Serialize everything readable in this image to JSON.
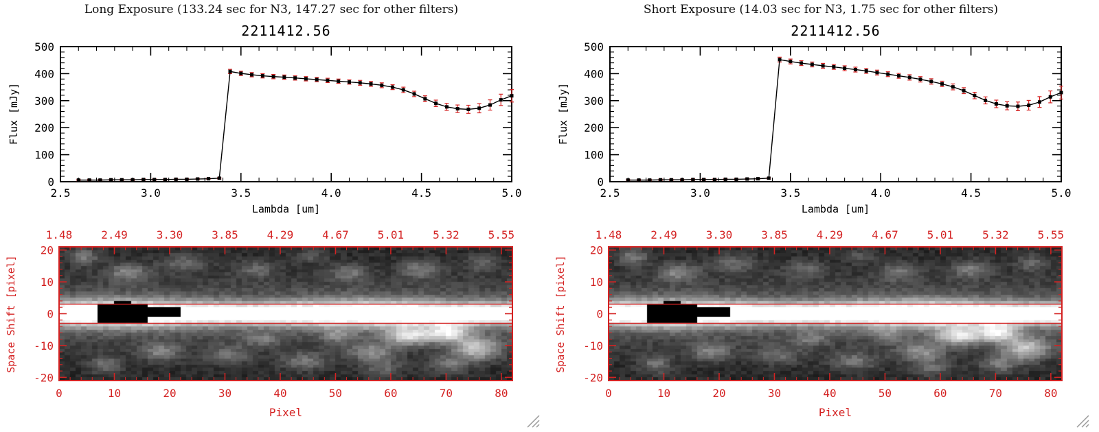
{
  "colors": {
    "red": "#d42222",
    "black": "#000000",
    "background": "#ffffff"
  },
  "chart_data": [
    {
      "panel": "long-exposure",
      "panel_title": "Long Exposure (133.24 sec for N3, 147.27 sec for other filters)",
      "object_id": "2211412.56",
      "spectrum": {
        "type": "line",
        "title": "2211412.56",
        "xlabel": "Lambda [um]",
        "ylabel": "Flux [mJy]",
        "xlim": [
          2.5,
          5.0
        ],
        "ylim": [
          0,
          500
        ],
        "xticks": [
          "2.5",
          "3.0",
          "3.5",
          "4.0",
          "4.5",
          "5.0"
        ],
        "yticks": [
          "0",
          "100",
          "200",
          "300",
          "400",
          "500"
        ],
        "marker": "square",
        "line_color": "#000000",
        "error_color": "#d42222",
        "x": [
          2.6,
          2.66,
          2.72,
          2.78,
          2.84,
          2.9,
          2.96,
          3.02,
          3.08,
          3.14,
          3.2,
          3.26,
          3.32,
          3.38,
          3.44,
          3.5,
          3.56,
          3.62,
          3.68,
          3.74,
          3.8,
          3.86,
          3.92,
          3.98,
          4.04,
          4.1,
          4.16,
          4.22,
          4.28,
          4.34,
          4.4,
          4.46,
          4.52,
          4.58,
          4.64,
          4.7,
          4.76,
          4.82,
          4.88,
          4.94,
          5.0
        ],
        "y": [
          6,
          6,
          6,
          7,
          7,
          7,
          8,
          8,
          8,
          9,
          9,
          10,
          11,
          13,
          408,
          401,
          396,
          392,
          389,
          387,
          384,
          381,
          378,
          375,
          372,
          369,
          366,
          362,
          357,
          350,
          340,
          325,
          307,
          290,
          277,
          270,
          268,
          272,
          284,
          303,
          318
        ],
        "yerr": [
          3,
          3,
          3,
          3,
          3,
          3,
          3,
          3,
          3,
          3,
          3,
          3,
          3,
          3,
          8,
          8,
          8,
          8,
          8,
          8,
          8,
          8,
          8,
          8,
          8,
          8,
          9,
          9,
          9,
          9,
          10,
          10,
          11,
          12,
          13,
          14,
          15,
          17,
          19,
          21,
          23
        ]
      },
      "image2d": {
        "type": "heatmap",
        "xlabel": "Pixel",
        "ylabel": "Space Shift [pixel]",
        "xlim": [
          0,
          82
        ],
        "ylim": [
          -21,
          21
        ],
        "xticks": [
          "0",
          "10",
          "20",
          "30",
          "40",
          "50",
          "60",
          "70",
          "80"
        ],
        "yticks": [
          "20",
          "10",
          "0",
          "-10",
          "-20"
        ],
        "top_axis_labels": [
          "1.48",
          "2.49",
          "3.30",
          "3.85",
          "4.29",
          "4.67",
          "5.01",
          "5.32",
          "5.55"
        ],
        "aperture_y": [
          3,
          -3
        ],
        "saturated_region": {
          "x": [
            7,
            21
          ],
          "y": [
            -2.6,
            3.6
          ]
        },
        "frame_color": "#d42222"
      }
    },
    {
      "panel": "short-exposure",
      "panel_title": "Short Exposure (14.03 sec for N3, 1.75 sec for other filters)",
      "object_id": "2211412.56",
      "spectrum": {
        "type": "line",
        "title": "2211412.56",
        "xlabel": "Lambda [um]",
        "ylabel": "Flux [mJy]",
        "xlim": [
          2.5,
          5.0
        ],
        "ylim": [
          0,
          500
        ],
        "xticks": [
          "2.5",
          "3.0",
          "3.5",
          "4.0",
          "4.5",
          "5.0"
        ],
        "yticks": [
          "0",
          "100",
          "200",
          "300",
          "400",
          "500"
        ],
        "marker": "square",
        "line_color": "#000000",
        "error_color": "#d42222",
        "x": [
          2.6,
          2.66,
          2.72,
          2.78,
          2.84,
          2.9,
          2.96,
          3.02,
          3.08,
          3.14,
          3.2,
          3.26,
          3.32,
          3.38,
          3.44,
          3.5,
          3.56,
          3.62,
          3.68,
          3.74,
          3.8,
          3.86,
          3.92,
          3.98,
          4.04,
          4.1,
          4.16,
          4.22,
          4.28,
          4.34,
          4.4,
          4.46,
          4.52,
          4.58,
          4.64,
          4.7,
          4.76,
          4.82,
          4.88,
          4.94,
          5.0
        ],
        "y": [
          6,
          6,
          6,
          7,
          7,
          7,
          8,
          8,
          8,
          9,
          9,
          10,
          11,
          13,
          452,
          445,
          439,
          434,
          429,
          425,
          420,
          415,
          410,
          404,
          398,
          392,
          386,
          379,
          371,
          362,
          351,
          337,
          319,
          301,
          288,
          281,
          279,
          283,
          295,
          314,
          330
        ],
        "yerr": [
          3,
          3,
          3,
          3,
          3,
          3,
          3,
          3,
          3,
          3,
          3,
          3,
          3,
          3,
          9,
          9,
          9,
          9,
          9,
          9,
          9,
          9,
          9,
          9,
          9,
          9,
          10,
          10,
          10,
          10,
          11,
          11,
          12,
          13,
          14,
          15,
          16,
          18,
          20,
          22,
          24
        ]
      },
      "image2d": {
        "type": "heatmap",
        "xlabel": "Pixel",
        "ylabel": "Space Shift [pixel]",
        "xlim": [
          0,
          82
        ],
        "ylim": [
          -21,
          21
        ],
        "xticks": [
          "0",
          "10",
          "20",
          "30",
          "40",
          "50",
          "60",
          "70",
          "80"
        ],
        "yticks": [
          "20",
          "10",
          "0",
          "-10",
          "-20"
        ],
        "top_axis_labels": [
          "1.48",
          "2.49",
          "3.30",
          "3.85",
          "4.29",
          "4.67",
          "5.01",
          "5.32",
          "5.55"
        ],
        "aperture_y": [
          3,
          -3
        ],
        "saturated_region": {
          "x": [
            7,
            21
          ],
          "y": [
            -2.6,
            3.6
          ]
        },
        "frame_color": "#d42222"
      }
    }
  ]
}
